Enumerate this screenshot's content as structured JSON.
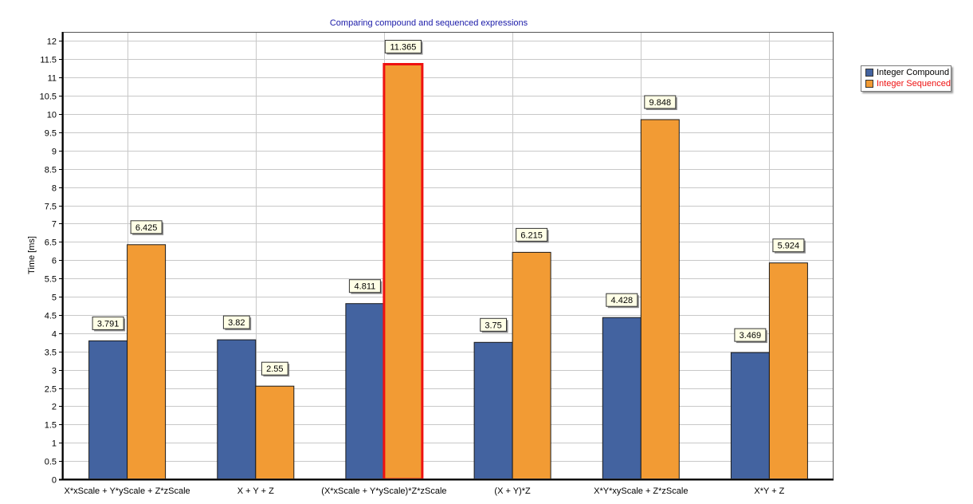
{
  "chart_data": {
    "type": "bar",
    "title": "Comparing compound and sequenced expressions",
    "ylabel": "Time [ms]",
    "xlabel": "",
    "ylim": [
      0,
      12.25
    ],
    "yticks": [
      "0",
      "0.5",
      "1",
      "1.5",
      "2",
      "2.5",
      "3",
      "3.5",
      "4",
      "4.5",
      "5",
      "5.5",
      "6",
      "6.5",
      "7",
      "7.5",
      "8",
      "8.5",
      "9",
      "9.5",
      "10",
      "10.5",
      "11",
      "11.5",
      "12"
    ],
    "categories": [
      "X*xScale + Y*yScale + Z*zScale",
      "X + Y + Z",
      "(X*xScale + Y*yScale)*Z*zScale",
      "(X + Y)*Z",
      "X*Y*xyScale + Z*zScale",
      "X*Y + Z"
    ],
    "series": [
      {
        "name": "Integer Compound",
        "color": "#4363a0",
        "values": [
          3.791,
          3.82,
          4.811,
          3.75,
          4.428,
          3.469
        ],
        "labels": [
          "3.791",
          "3.82",
          "4.811",
          "3.75",
          "4.428",
          "3.469"
        ]
      },
      {
        "name": "Integer Sequenced",
        "color": "#f29b34",
        "values": [
          6.425,
          2.55,
          11.365,
          6.215,
          9.848,
          5.924
        ],
        "labels": [
          "6.425",
          "2.55",
          "11.365",
          "6.215",
          "9.848",
          "5.924"
        ]
      }
    ],
    "highlighted": {
      "series": 1,
      "category": 2,
      "color": "#ee1111"
    },
    "grid": true,
    "legend_position": "right",
    "legend_highlight_color": "#ee1111"
  }
}
